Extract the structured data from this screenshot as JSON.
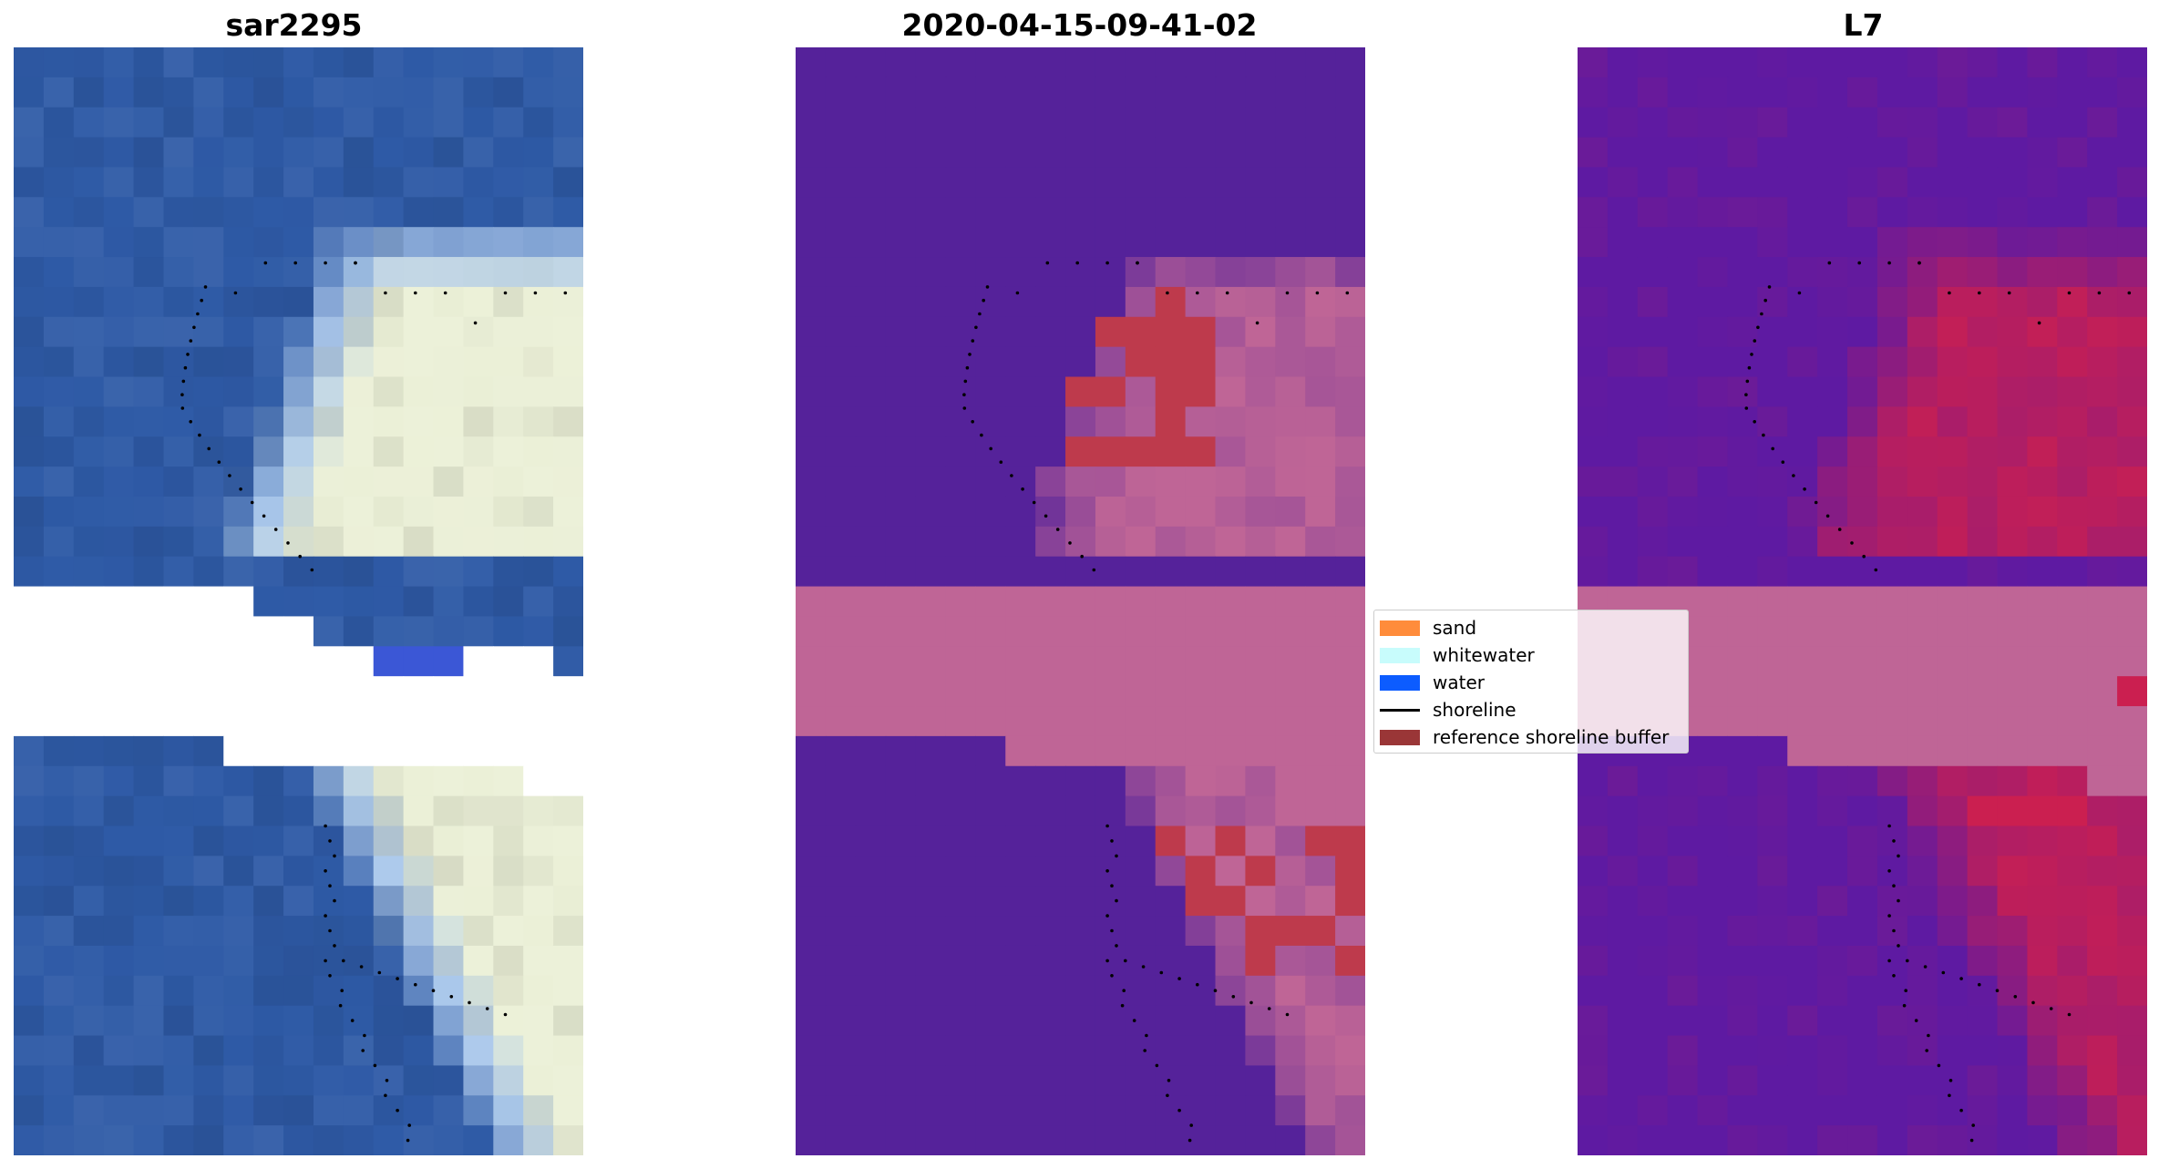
{
  "panels": [
    {
      "title": "sar2295"
    },
    {
      "title": "2020-04-15-09-41-02"
    },
    {
      "title": "L7"
    }
  ],
  "legend": {
    "items": [
      {
        "label": "sand",
        "color": "#ff8c3b",
        "kind": "patch",
        "icon": "sand-swatch-icon"
      },
      {
        "label": "whitewater",
        "color": "#c8fcfc",
        "kind": "patch",
        "icon": "whitewater-swatch-icon"
      },
      {
        "label": "water",
        "color": "#0c5cff",
        "kind": "patch",
        "icon": "water-swatch-icon"
      },
      {
        "label": "shoreline",
        "color": "#000000",
        "kind": "line",
        "icon": "shoreline-line-icon"
      },
      {
        "label": "reference shoreline buffer",
        "color": "#9a3637",
        "kind": "patch",
        "icon": "buffer-swatch-icon"
      }
    ]
  },
  "colors": {
    "background": "#ffffff",
    "rgb_water": "#2e5aa6",
    "classification_background": "#55229a",
    "classification_buffer": "#bf6596",
    "classification_sand_overlay": "#be3a4c",
    "ndwi_low": "#5e1aa2",
    "ndwi_high": "#cb1f50",
    "shoreline_points": "#000000"
  }
}
